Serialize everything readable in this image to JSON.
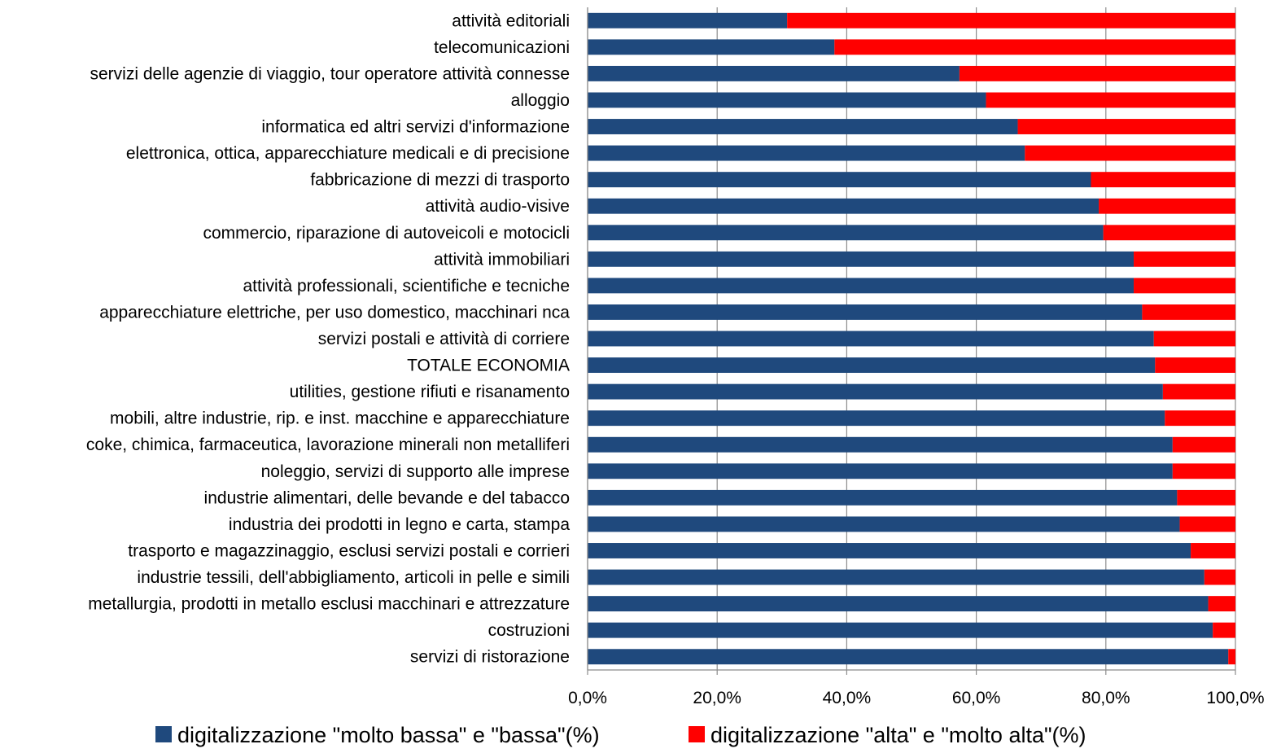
{
  "chart_data": {
    "type": "bar",
    "orientation": "horizontal",
    "stacked": true,
    "categories": [
      "attività editoriali",
      "telecomunicazioni",
      "servizi delle agenzie di viaggio, tour operatore attività connesse",
      "alloggio",
      "informatica ed altri servizi d'informazione",
      "elettronica, ottica, apparecchiature medicali e di precisione",
      "fabbricazione di mezzi di trasporto",
      "attività audio-visive",
      "commercio, riparazione di autoveicoli e motocicli",
      "attività immobiliari",
      "attività professionali, scientifiche e tecniche",
      "apparecchiature elettriche, per uso domestico, macchinari nca",
      "servizi postali e attività di corriere",
      "TOTALE ECONOMIA",
      "utilities, gestione rifiuti e risanamento",
      "mobili, altre industrie, rip. e inst. macchine e apparecchiature",
      "coke, chimica, farmaceutica, lavorazione minerali non metalliferi",
      "noleggio, servizi di supporto alle imprese",
      "industrie alimentari, delle bevande e del tabacco",
      "industria dei prodotti in legno e carta, stampa",
      "trasporto e magazzinaggio, esclusi servizi postali e corrieri",
      "industrie tessili, dell'abbigliamento, articoli in pelle e simili",
      "metallurgia, prodotti in metallo esclusi macchinari e attrezzature",
      "costruzioni",
      "servizi di ristorazione"
    ],
    "series": [
      {
        "name": "digitalizzazione \"molto bassa\" e \"bassa\"(%)",
        "color": "#1F497D",
        "values": [
          30.8,
          38.1,
          57.4,
          61.5,
          66.4,
          67.5,
          77.7,
          78.9,
          79.6,
          84.3,
          84.3,
          85.6,
          87.4,
          87.6,
          88.8,
          89.1,
          90.3,
          90.3,
          91.0,
          91.4,
          93.1,
          95.2,
          95.8,
          96.5,
          98.9
        ]
      },
      {
        "name": "digitalizzazione \"alta\" e \"molto alta\"(%)",
        "color": "#FF0000",
        "values": [
          69.2,
          61.9,
          42.6,
          38.5,
          33.6,
          32.5,
          22.3,
          21.1,
          20.4,
          15.7,
          15.7,
          14.4,
          12.6,
          12.4,
          11.2,
          10.9,
          9.7,
          9.7,
          9.0,
          8.6,
          6.9,
          4.8,
          4.2,
          3.5,
          1.1
        ]
      }
    ],
    "xlim": [
      0,
      100
    ],
    "x_ticks": [
      "0,0%",
      "20,0%",
      "40,0%",
      "60,0%",
      "80,0%",
      "100,0%"
    ],
    "grid": true,
    "legend_position": "bottom"
  }
}
